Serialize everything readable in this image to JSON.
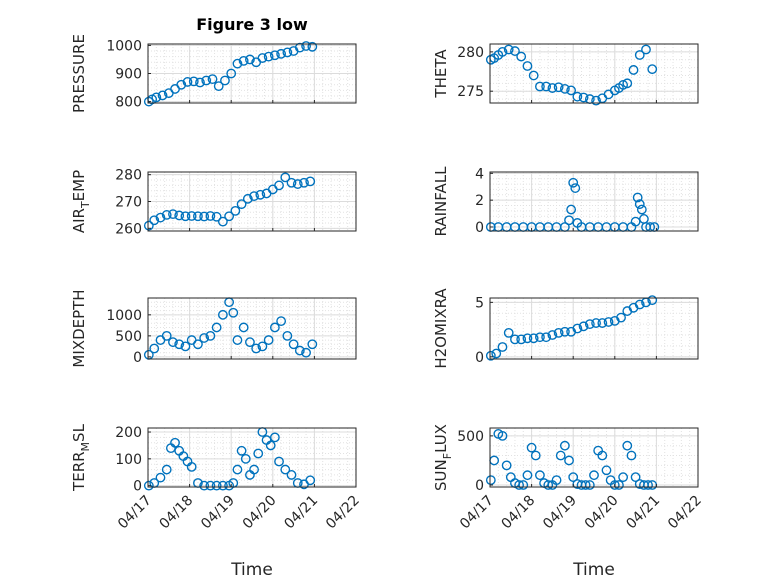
{
  "figure": {
    "title": "Figure 3 low",
    "xlabel": "Time",
    "marker_color": "#0072bd",
    "grid": true,
    "minor_grid": true
  },
  "chart_data": [
    {
      "type": "scatter",
      "ylabel": "PRESSURE",
      "ylim": [
        795,
        1005
      ],
      "yticks": [
        800,
        900,
        1000
      ],
      "series": [
        {
          "x": [
            0.02,
            0.1,
            0.2,
            0.35,
            0.5,
            0.65,
            0.8,
            0.95,
            1.1,
            1.25,
            1.4,
            1.55,
            1.7,
            1.85,
            2.0,
            2.15,
            2.3,
            2.45,
            2.6,
            2.75,
            2.9,
            3.05,
            3.2,
            3.35,
            3.5,
            3.65,
            3.8,
            3.95
          ],
          "y": [
            800,
            808,
            815,
            822,
            830,
            845,
            860,
            870,
            872,
            868,
            875,
            880,
            855,
            875,
            900,
            935,
            945,
            950,
            940,
            955,
            960,
            965,
            970,
            975,
            980,
            992,
            998,
            995
          ]
        }
      ]
    },
    {
      "type": "scatter",
      "ylabel": "THETA",
      "ylim": [
        273.5,
        281
      ],
      "yticks": [
        275,
        280
      ],
      "series": [
        {
          "x": [
            0.02,
            0.1,
            0.2,
            0.3,
            0.45,
            0.6,
            0.75,
            0.9,
            1.05,
            1.2,
            1.35,
            1.5,
            1.65,
            1.8,
            1.95,
            2.1,
            2.25,
            2.4,
            2.55,
            2.7,
            2.85,
            3.0,
            3.1,
            3.2,
            3.3,
            3.45,
            3.6,
            3.75,
            3.9
          ],
          "y": [
            279,
            279.2,
            279.6,
            280,
            280.3,
            280.1,
            279.4,
            278.2,
            277,
            275.6,
            275.6,
            275.4,
            275.5,
            275.3,
            275.1,
            274.3,
            274.2,
            274,
            273.8,
            274.1,
            274.6,
            275.1,
            275.4,
            275.8,
            276,
            277.7,
            279.6,
            280.3,
            277.8
          ]
        }
      ]
    },
    {
      "type": "scatter",
      "ylabel": "AIR_TEMP",
      "ylim": [
        259,
        281
      ],
      "yticks": [
        260,
        270,
        280
      ],
      "series": [
        {
          "x": [
            0.02,
            0.15,
            0.3,
            0.45,
            0.6,
            0.75,
            0.9,
            1.05,
            1.2,
            1.35,
            1.5,
            1.65,
            1.8,
            1.95,
            2.1,
            2.25,
            2.4,
            2.55,
            2.7,
            2.85,
            3.0,
            3.15,
            3.3,
            3.45,
            3.6,
            3.75,
            3.9
          ],
          "y": [
            261,
            263,
            264,
            265,
            265.3,
            264.8,
            264.5,
            264.6,
            264.5,
            264.4,
            264.6,
            264.3,
            262.5,
            264.5,
            266.5,
            269,
            271,
            272,
            272.5,
            273,
            274.5,
            276,
            279,
            277,
            276.5,
            277,
            277.5
          ]
        }
      ]
    },
    {
      "type": "scatter",
      "ylabel": "RAINFALL",
      "ylim": [
        -0.3,
        4.1
      ],
      "yticks": [
        0,
        2,
        4
      ],
      "series": [
        {
          "x": [
            0.02,
            0.2,
            0.4,
            0.6,
            0.8,
            1.0,
            1.2,
            1.4,
            1.6,
            1.8,
            1.9,
            1.95,
            2.0,
            2.05,
            2.1,
            2.2,
            2.4,
            2.6,
            2.8,
            3.0,
            3.2,
            3.4,
            3.5,
            3.55,
            3.6,
            3.65,
            3.7,
            3.75,
            3.85,
            3.95
          ],
          "y": [
            0,
            0,
            0,
            0,
            0,
            0,
            0,
            0,
            0,
            0,
            0.5,
            1.3,
            3.3,
            2.9,
            0.3,
            0,
            0,
            0,
            0,
            0,
            0,
            0,
            0.4,
            2.2,
            1.7,
            1.3,
            0.6,
            0,
            0,
            0
          ]
        }
      ]
    },
    {
      "type": "scatter",
      "ylabel": "MIXDEPTH",
      "ylim": [
        -50,
        1400
      ],
      "yticks": [
        0,
        500,
        1000
      ],
      "series": [
        {
          "x": [
            0.02,
            0.15,
            0.3,
            0.45,
            0.6,
            0.75,
            0.9,
            1.05,
            1.2,
            1.35,
            1.5,
            1.65,
            1.8,
            1.95,
            2.05,
            2.15,
            2.3,
            2.45,
            2.6,
            2.75,
            2.9,
            3.05,
            3.2,
            3.35,
            3.5,
            3.65,
            3.8,
            3.95
          ],
          "y": [
            50,
            200,
            400,
            500,
            350,
            300,
            250,
            400,
            300,
            450,
            500,
            700,
            1000,
            1300,
            1050,
            400,
            700,
            350,
            200,
            250,
            400,
            700,
            850,
            500,
            300,
            150,
            100,
            300
          ]
        }
      ]
    },
    {
      "type": "scatter",
      "ylabel": "H2OMIXRA",
      "ylim": [
        -0.2,
        5.4
      ],
      "yticks": [
        0,
        5
      ],
      "series": [
        {
          "x": [
            0.02,
            0.15,
            0.3,
            0.45,
            0.6,
            0.75,
            0.9,
            1.05,
            1.2,
            1.35,
            1.5,
            1.65,
            1.8,
            1.95,
            2.1,
            2.25,
            2.4,
            2.55,
            2.7,
            2.85,
            3.0,
            3.15,
            3.3,
            3.45,
            3.6,
            3.75,
            3.9
          ],
          "y": [
            0.1,
            0.3,
            0.9,
            2.2,
            1.6,
            1.6,
            1.7,
            1.7,
            1.8,
            1.8,
            2.0,
            2.2,
            2.3,
            2.3,
            2.6,
            2.8,
            3.0,
            3.1,
            3.1,
            3.2,
            3.3,
            3.6,
            4.2,
            4.5,
            4.8,
            5.0,
            5.2
          ]
        }
      ]
    },
    {
      "type": "scatter",
      "ylabel": "TERR_MSL",
      "ylim": [
        -5,
        215
      ],
      "yticks": [
        0,
        100,
        200
      ],
      "series": [
        {
          "x": [
            0.02,
            0.15,
            0.3,
            0.45,
            0.55,
            0.65,
            0.75,
            0.85,
            0.95,
            1.05,
            1.2,
            1.35,
            1.5,
            1.65,
            1.8,
            1.95,
            2.05,
            2.15,
            2.25,
            2.35,
            2.45,
            2.55,
            2.65,
            2.75,
            2.85,
            2.95,
            3.05,
            3.15,
            3.3,
            3.45,
            3.6,
            3.75,
            3.9
          ],
          "y": [
            0,
            10,
            30,
            60,
            140,
            160,
            130,
            110,
            90,
            70,
            10,
            0,
            0,
            0,
            0,
            0,
            10,
            60,
            130,
            100,
            40,
            60,
            120,
            200,
            170,
            150,
            180,
            90,
            60,
            40,
            10,
            5,
            20
          ]
        }
      ]
    },
    {
      "type": "scatter",
      "ylabel": "SUN_FLUX",
      "ylim": [
        -20,
        580
      ],
      "yticks": [
        0,
        500
      ],
      "series": [
        {
          "x": [
            0.02,
            0.1,
            0.2,
            0.3,
            0.4,
            0.5,
            0.6,
            0.7,
            0.8,
            0.9,
            1.0,
            1.1,
            1.2,
            1.3,
            1.4,
            1.5,
            1.6,
            1.7,
            1.8,
            1.9,
            2.0,
            2.1,
            2.2,
            2.3,
            2.4,
            2.5,
            2.6,
            2.7,
            2.8,
            2.9,
            3.0,
            3.1,
            3.2,
            3.3,
            3.4,
            3.5,
            3.6,
            3.7,
            3.8,
            3.9
          ],
          "y": [
            50,
            250,
            520,
            500,
            200,
            80,
            20,
            0,
            0,
            100,
            380,
            300,
            100,
            20,
            0,
            0,
            50,
            300,
            400,
            250,
            80,
            10,
            0,
            0,
            0,
            100,
            350,
            300,
            150,
            50,
            0,
            0,
            80,
            400,
            300,
            80,
            10,
            0,
            0,
            0
          ]
        }
      ]
    }
  ],
  "shared_x": {
    "xlim": [
      0,
      5
    ],
    "xtick_values": [
      0,
      1,
      2,
      3,
      4,
      5
    ],
    "xtick_labels": [
      "04/17",
      "04/18",
      "04/19",
      "04/20",
      "04/21",
      "04/22"
    ]
  }
}
